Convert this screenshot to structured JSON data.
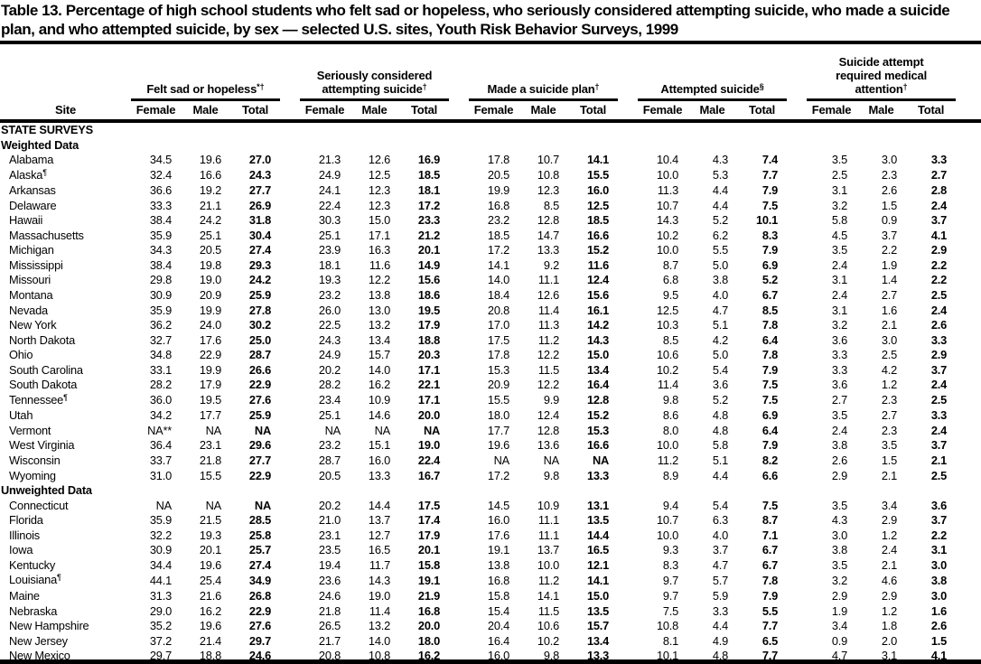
{
  "page": {
    "title": "Table 13. Percentage of high school students who felt sad or hopeless, who seriously considered attempting suicide, who made a suicide plan, and who attempted suicide, by sex — selected U.S. sites, Youth Risk Behavior Surveys, 1999"
  },
  "colors": {
    "text": "#000000",
    "background": "#ffffff",
    "rule": "#000000"
  },
  "table": {
    "site_header": "Site",
    "sub_headers": [
      "Female",
      "Male",
      "Total"
    ],
    "groups": [
      {
        "label": "Felt sad or hopeless",
        "footnote": "*†"
      },
      {
        "label": "Seriously considered attempting suicide",
        "footnote": "†"
      },
      {
        "label": "Made a suicide plan",
        "footnote": "†"
      },
      {
        "label": "Attempted suicide",
        "footnote": "§"
      },
      {
        "label": "Suicide attempt required medical attention",
        "footnote": "†"
      }
    ],
    "rows": [
      {
        "type": "section",
        "label": "STATE SURVEYS"
      },
      {
        "type": "section",
        "label": "Weighted Data"
      },
      {
        "type": "data",
        "site": "Alabama",
        "site_footnote": "",
        "values": [
          "34.5",
          "19.6",
          "27.0",
          "21.3",
          "12.6",
          "16.9",
          "17.8",
          "10.7",
          "14.1",
          "10.4",
          "4.3",
          "7.4",
          "3.5",
          "3.0",
          "3.3"
        ]
      },
      {
        "type": "data",
        "site": "Alaska",
        "site_footnote": "¶",
        "values": [
          "32.4",
          "16.6",
          "24.3",
          "24.9",
          "12.5",
          "18.5",
          "20.5",
          "10.8",
          "15.5",
          "10.0",
          "5.3",
          "7.7",
          "2.5",
          "2.3",
          "2.7"
        ]
      },
      {
        "type": "data",
        "site": "Arkansas",
        "site_footnote": "",
        "values": [
          "36.6",
          "19.2",
          "27.7",
          "24.1",
          "12.3",
          "18.1",
          "19.9",
          "12.3",
          "16.0",
          "11.3",
          "4.4",
          "7.9",
          "3.1",
          "2.6",
          "2.8"
        ]
      },
      {
        "type": "data",
        "site": "Delaware",
        "site_footnote": "",
        "values": [
          "33.3",
          "21.1",
          "26.9",
          "22.4",
          "12.3",
          "17.2",
          "16.8",
          "8.5",
          "12.5",
          "10.7",
          "4.4",
          "7.5",
          "3.2",
          "1.5",
          "2.4"
        ]
      },
      {
        "type": "data",
        "site": "Hawaii",
        "site_footnote": "",
        "values": [
          "38.4",
          "24.2",
          "31.8",
          "30.3",
          "15.0",
          "23.3",
          "23.2",
          "12.8",
          "18.5",
          "14.3",
          "5.2",
          "10.1",
          "5.8",
          "0.9",
          "3.7"
        ]
      },
      {
        "type": "data",
        "site": "Massachusetts",
        "site_footnote": "",
        "values": [
          "35.9",
          "25.1",
          "30.4",
          "25.1",
          "17.1",
          "21.2",
          "18.5",
          "14.7",
          "16.6",
          "10.2",
          "6.2",
          "8.3",
          "4.5",
          "3.7",
          "4.1"
        ]
      },
      {
        "type": "data",
        "site": "Michigan",
        "site_footnote": "",
        "values": [
          "34.3",
          "20.5",
          "27.4",
          "23.9",
          "16.3",
          "20.1",
          "17.2",
          "13.3",
          "15.2",
          "10.0",
          "5.5",
          "7.9",
          "3.5",
          "2.2",
          "2.9"
        ]
      },
      {
        "type": "data",
        "site": "Mississippi",
        "site_footnote": "",
        "values": [
          "38.4",
          "19.8",
          "29.3",
          "18.1",
          "11.6",
          "14.9",
          "14.1",
          "9.2",
          "11.6",
          "8.7",
          "5.0",
          "6.9",
          "2.4",
          "1.9",
          "2.2"
        ]
      },
      {
        "type": "data",
        "site": "Missouri",
        "site_footnote": "",
        "values": [
          "29.8",
          "19.0",
          "24.2",
          "19.3",
          "12.2",
          "15.6",
          "14.0",
          "11.1",
          "12.4",
          "6.8",
          "3.8",
          "5.2",
          "3.1",
          "1.4",
          "2.2"
        ]
      },
      {
        "type": "data",
        "site": "Montana",
        "site_footnote": "",
        "values": [
          "30.9",
          "20.9",
          "25.9",
          "23.2",
          "13.8",
          "18.6",
          "18.4",
          "12.6",
          "15.6",
          "9.5",
          "4.0",
          "6.7",
          "2.4",
          "2.7",
          "2.5"
        ]
      },
      {
        "type": "data",
        "site": "Nevada",
        "site_footnote": "",
        "values": [
          "35.9",
          "19.9",
          "27.8",
          "26.0",
          "13.0",
          "19.5",
          "20.8",
          "11.4",
          "16.1",
          "12.5",
          "4.7",
          "8.5",
          "3.1",
          "1.6",
          "2.4"
        ]
      },
      {
        "type": "data",
        "site": "New York",
        "site_footnote": "",
        "values": [
          "36.2",
          "24.0",
          "30.2",
          "22.5",
          "13.2",
          "17.9",
          "17.0",
          "11.3",
          "14.2",
          "10.3",
          "5.1",
          "7.8",
          "3.2",
          "2.1",
          "2.6"
        ]
      },
      {
        "type": "data",
        "site": "North Dakota",
        "site_footnote": "",
        "values": [
          "32.7",
          "17.6",
          "25.0",
          "24.3",
          "13.4",
          "18.8",
          "17.5",
          "11.2",
          "14.3",
          "8.5",
          "4.2",
          "6.4",
          "3.6",
          "3.0",
          "3.3"
        ]
      },
      {
        "type": "data",
        "site": "Ohio",
        "site_footnote": "",
        "values": [
          "34.8",
          "22.9",
          "28.7",
          "24.9",
          "15.7",
          "20.3",
          "17.8",
          "12.2",
          "15.0",
          "10.6",
          "5.0",
          "7.8",
          "3.3",
          "2.5",
          "2.9"
        ]
      },
      {
        "type": "data",
        "site": "South Carolina",
        "site_footnote": "",
        "values": [
          "33.1",
          "19.9",
          "26.6",
          "20.2",
          "14.0",
          "17.1",
          "15.3",
          "11.5",
          "13.4",
          "10.2",
          "5.4",
          "7.9",
          "3.3",
          "4.2",
          "3.7"
        ]
      },
      {
        "type": "data",
        "site": "South Dakota",
        "site_footnote": "",
        "values": [
          "28.2",
          "17.9",
          "22.9",
          "28.2",
          "16.2",
          "22.1",
          "20.9",
          "12.2",
          "16.4",
          "11.4",
          "3.6",
          "7.5",
          "3.6",
          "1.2",
          "2.4"
        ]
      },
      {
        "type": "data",
        "site": "Tennessee",
        "site_footnote": "¶",
        "values": [
          "36.0",
          "19.5",
          "27.6",
          "23.4",
          "10.9",
          "17.1",
          "15.5",
          "9.9",
          "12.8",
          "9.8",
          "5.2",
          "7.5",
          "2.7",
          "2.3",
          "2.5"
        ]
      },
      {
        "type": "data",
        "site": "Utah",
        "site_footnote": "",
        "values": [
          "34.2",
          "17.7",
          "25.9",
          "25.1",
          "14.6",
          "20.0",
          "18.0",
          "12.4",
          "15.2",
          "8.6",
          "4.8",
          "6.9",
          "3.5",
          "2.7",
          "3.3"
        ]
      },
      {
        "type": "data",
        "site": "Vermont",
        "site_footnote": "",
        "values": [
          "NA**",
          "NA",
          "NA",
          "NA",
          "NA",
          "NA",
          "17.7",
          "12.8",
          "15.3",
          "8.0",
          "4.8",
          "6.4",
          "2.4",
          "2.3",
          "2.4"
        ]
      },
      {
        "type": "data",
        "site": "West Virginia",
        "site_footnote": "",
        "values": [
          "36.4",
          "23.1",
          "29.6",
          "23.2",
          "15.1",
          "19.0",
          "19.6",
          "13.6",
          "16.6",
          "10.0",
          "5.8",
          "7.9",
          "3.8",
          "3.5",
          "3.7"
        ]
      },
      {
        "type": "data",
        "site": "Wisconsin",
        "site_footnote": "",
        "values": [
          "33.7",
          "21.8",
          "27.7",
          "28.7",
          "16.0",
          "22.4",
          "NA",
          "NA",
          "NA",
          "11.2",
          "5.1",
          "8.2",
          "2.6",
          "1.5",
          "2.1"
        ]
      },
      {
        "type": "data",
        "site": "Wyoming",
        "site_footnote": "",
        "values": [
          "31.0",
          "15.5",
          "22.9",
          "20.5",
          "13.3",
          "16.7",
          "17.2",
          "9.8",
          "13.3",
          "8.9",
          "4.4",
          "6.6",
          "2.9",
          "2.1",
          "2.5"
        ]
      },
      {
        "type": "section",
        "label": "Unweighted Data"
      },
      {
        "type": "data",
        "site": "Connecticut",
        "site_footnote": "",
        "values": [
          "NA",
          "NA",
          "NA",
          "20.2",
          "14.4",
          "17.5",
          "14.5",
          "10.9",
          "13.1",
          "9.4",
          "5.4",
          "7.5",
          "3.5",
          "3.4",
          "3.6"
        ]
      },
      {
        "type": "data",
        "site": "Florida",
        "site_footnote": "",
        "values": [
          "35.9",
          "21.5",
          "28.5",
          "21.0",
          "13.7",
          "17.4",
          "16.0",
          "11.1",
          "13.5",
          "10.7",
          "6.3",
          "8.7",
          "4.3",
          "2.9",
          "3.7"
        ]
      },
      {
        "type": "data",
        "site": "Illinois",
        "site_footnote": "",
        "values": [
          "32.2",
          "19.3",
          "25.8",
          "23.1",
          "12.7",
          "17.9",
          "17.6",
          "11.1",
          "14.4",
          "10.0",
          "4.0",
          "7.1",
          "3.0",
          "1.2",
          "2.2"
        ]
      },
      {
        "type": "data",
        "site": "Iowa",
        "site_footnote": "",
        "values": [
          "30.9",
          "20.1",
          "25.7",
          "23.5",
          "16.5",
          "20.1",
          "19.1",
          "13.7",
          "16.5",
          "9.3",
          "3.7",
          "6.7",
          "3.8",
          "2.4",
          "3.1"
        ]
      },
      {
        "type": "data",
        "site": "Kentucky",
        "site_footnote": "",
        "values": [
          "34.4",
          "19.6",
          "27.4",
          "19.4",
          "11.7",
          "15.8",
          "13.8",
          "10.0",
          "12.1",
          "8.3",
          "4.7",
          "6.7",
          "3.5",
          "2.1",
          "3.0"
        ]
      },
      {
        "type": "data",
        "site": "Louisiana",
        "site_footnote": "¶",
        "values": [
          "44.1",
          "25.4",
          "34.9",
          "23.6",
          "14.3",
          "19.1",
          "16.8",
          "11.2",
          "14.1",
          "9.7",
          "5.7",
          "7.8",
          "3.2",
          "4.6",
          "3.8"
        ]
      },
      {
        "type": "data",
        "site": "Maine",
        "site_footnote": "",
        "values": [
          "31.3",
          "21.6",
          "26.8",
          "24.6",
          "19.0",
          "21.9",
          "15.8",
          "14.1",
          "15.0",
          "9.7",
          "5.9",
          "7.9",
          "2.9",
          "2.9",
          "3.0"
        ]
      },
      {
        "type": "data",
        "site": "Nebraska",
        "site_footnote": "",
        "values": [
          "29.0",
          "16.2",
          "22.9",
          "21.8",
          "11.4",
          "16.8",
          "15.4",
          "11.5",
          "13.5",
          "7.5",
          "3.3",
          "5.5",
          "1.9",
          "1.2",
          "1.6"
        ]
      },
      {
        "type": "data",
        "site": "New Hampshire",
        "site_footnote": "",
        "values": [
          "35.2",
          "19.6",
          "27.6",
          "26.5",
          "13.2",
          "20.0",
          "20.4",
          "10.6",
          "15.7",
          "10.8",
          "4.4",
          "7.7",
          "3.4",
          "1.8",
          "2.6"
        ]
      },
      {
        "type": "data",
        "site": "New Jersey",
        "site_footnote": "",
        "values": [
          "37.2",
          "21.4",
          "29.7",
          "21.7",
          "14.0",
          "18.0",
          "16.4",
          "10.2",
          "13.4",
          "8.1",
          "4.9",
          "6.5",
          "0.9",
          "2.0",
          "1.5"
        ]
      },
      {
        "type": "data",
        "site": "New Mexico",
        "site_footnote": "",
        "values": [
          "29.7",
          "18.8",
          "24.6",
          "20.8",
          "10.8",
          "16.2",
          "16.0",
          "9.8",
          "13.3",
          "10.1",
          "4.8",
          "7.7",
          "4.7",
          "3.1",
          "4.1"
        ]
      }
    ]
  }
}
